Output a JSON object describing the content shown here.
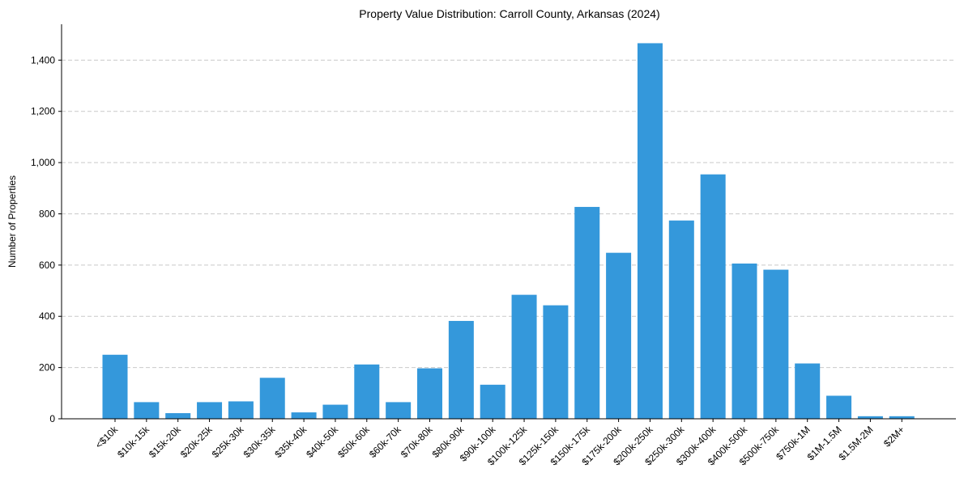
{
  "chart_data": {
    "type": "bar",
    "title": "Property Value Distribution: Carroll County, Arkansas (2024)",
    "xlabel": "",
    "ylabel": "Number of Properties",
    "ylim": [
      0,
      1540
    ],
    "yticks": [
      0,
      200,
      400,
      600,
      800,
      1000,
      1200,
      1400
    ],
    "ytick_labels": [
      "0",
      "200",
      "400",
      "600",
      "800",
      "1,000",
      "1,200",
      "1,400"
    ],
    "grid": "y, dashed",
    "bar_color": "#3498db",
    "categories": [
      "<$10k",
      "$10k-15k",
      "$15k-20k",
      "$20k-25k",
      "$25k-30k",
      "$30k-35k",
      "$35k-40k",
      "$40k-50k",
      "$50k-60k",
      "$60k-70k",
      "$70k-80k",
      "$80k-90k",
      "$90k-100k",
      "$100k-125k",
      "$125k-150k",
      "$150k-175k",
      "$175k-200k",
      "$200k-250k",
      "$250k-300k",
      "$300k-400k",
      "$400k-500k",
      "$500k-750k",
      "$750k-1M",
      "$1M-1.5M",
      "$1.5M-2M",
      "$2M+"
    ],
    "values": [
      250,
      65,
      22,
      65,
      68,
      160,
      25,
      55,
      212,
      65,
      197,
      382,
      133,
      484,
      443,
      827,
      648,
      1466,
      774,
      954,
      606,
      582,
      216,
      90,
      10,
      10
    ]
  }
}
